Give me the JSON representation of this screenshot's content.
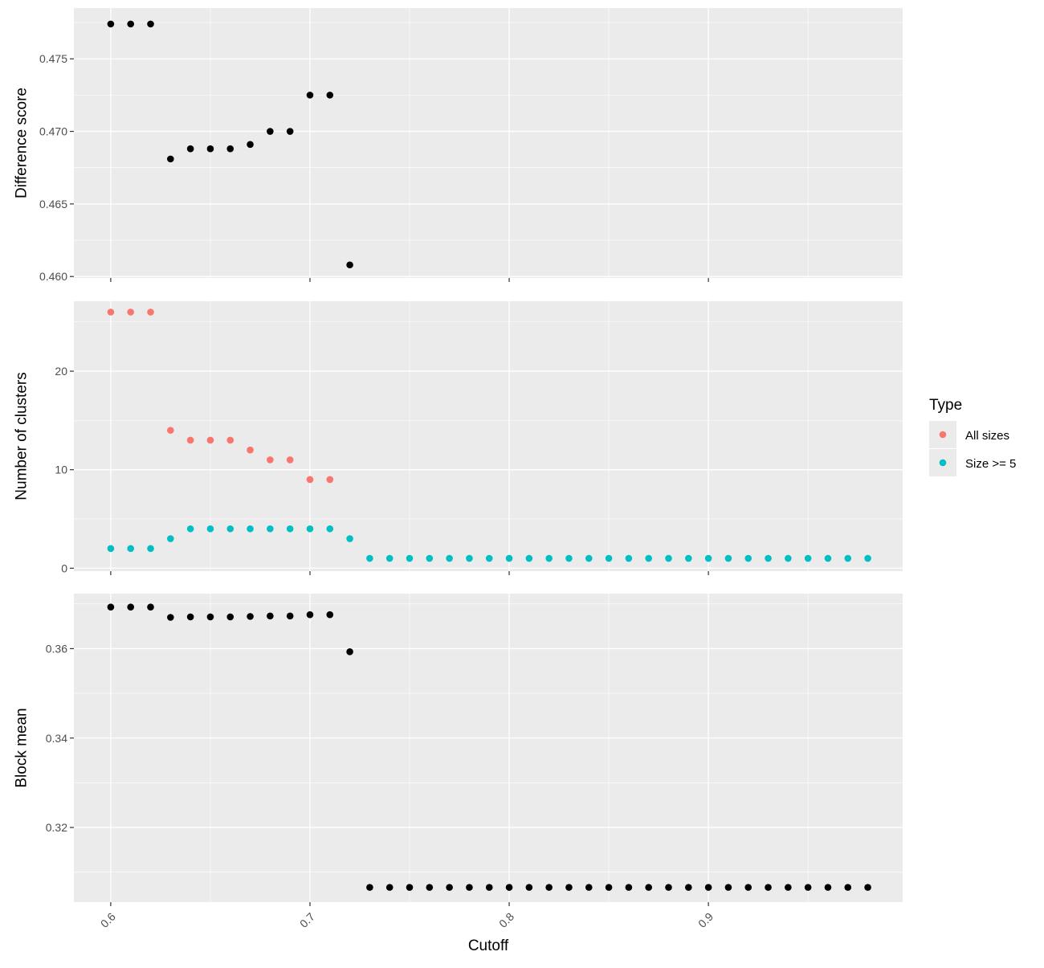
{
  "chart_data": {
    "type": "scatter",
    "x_axis": {
      "label": "Cutoff",
      "range": [
        0.5815,
        0.9975
      ],
      "ticks": [
        0.6,
        0.7,
        0.8,
        0.9
      ],
      "tick_labels": [
        "0.6",
        "0.7",
        "0.8",
        "0.9"
      ]
    },
    "grid": true,
    "legend": {
      "title": "Type",
      "placement": "right",
      "entries": [
        {
          "label": "All sizes",
          "color": "#F8766D"
        },
        {
          "label": "Size >= 5",
          "color": "#00BFC4"
        }
      ]
    },
    "panels": [
      {
        "ylabel": "Difference score",
        "ylim": [
          0.4599,
          0.4785
        ],
        "yticks": [
          0.46,
          0.465,
          0.47,
          0.475
        ],
        "ytick_labels": [
          "0.460",
          "0.465",
          "0.470",
          "0.475"
        ],
        "series": [
          {
            "color": "#000000",
            "points": [
              [
                0.6,
                0.4774
              ],
              [
                0.61,
                0.4774
              ],
              [
                0.62,
                0.4774
              ],
              [
                0.63,
                0.4681
              ],
              [
                0.64,
                0.4688
              ],
              [
                0.65,
                0.4688
              ],
              [
                0.66,
                0.4688
              ],
              [
                0.67,
                0.4691
              ],
              [
                0.68,
                0.47
              ],
              [
                0.69,
                0.47
              ],
              [
                0.7,
                0.4725
              ],
              [
                0.71,
                0.4725
              ],
              [
                0.72,
                0.4608
              ]
            ]
          }
        ]
      },
      {
        "ylabel": "Number of clusters",
        "ylim": [
          -0.3,
          27.1
        ],
        "yticks": [
          0,
          10,
          20
        ],
        "ytick_labels": [
          "0",
          "10",
          "20"
        ],
        "series": [
          {
            "name": "All sizes",
            "color": "#F8766D",
            "points": [
              [
                0.6,
                26
              ],
              [
                0.61,
                26
              ],
              [
                0.62,
                26
              ],
              [
                0.63,
                14
              ],
              [
                0.64,
                13
              ],
              [
                0.65,
                13
              ],
              [
                0.66,
                13
              ],
              [
                0.67,
                12
              ],
              [
                0.68,
                11
              ],
              [
                0.69,
                11
              ],
              [
                0.7,
                9
              ],
              [
                0.71,
                9
              ]
            ]
          },
          {
            "name": "Size >= 5",
            "color": "#00BFC4",
            "points": [
              [
                0.6,
                2
              ],
              [
                0.61,
                2
              ],
              [
                0.62,
                2
              ],
              [
                0.63,
                3
              ],
              [
                0.64,
                4
              ],
              [
                0.65,
                4
              ],
              [
                0.66,
                4
              ],
              [
                0.67,
                4
              ],
              [
                0.68,
                4
              ],
              [
                0.69,
                4
              ],
              [
                0.7,
                4
              ],
              [
                0.71,
                4
              ],
              [
                0.72,
                3
              ],
              [
                0.73,
                1
              ],
              [
                0.74,
                1
              ],
              [
                0.75,
                1
              ],
              [
                0.76,
                1
              ],
              [
                0.77,
                1
              ],
              [
                0.78,
                1
              ],
              [
                0.79,
                1
              ],
              [
                0.8,
                1
              ],
              [
                0.81,
                1
              ],
              [
                0.82,
                1
              ],
              [
                0.83,
                1
              ],
              [
                0.84,
                1
              ],
              [
                0.85,
                1
              ],
              [
                0.86,
                1
              ],
              [
                0.87,
                1
              ],
              [
                0.88,
                1
              ],
              [
                0.89,
                1
              ],
              [
                0.9,
                1
              ],
              [
                0.91,
                1
              ],
              [
                0.92,
                1
              ],
              [
                0.93,
                1
              ],
              [
                0.94,
                1
              ],
              [
                0.95,
                1
              ],
              [
                0.96,
                1
              ],
              [
                0.97,
                1
              ],
              [
                0.98,
                1
              ]
            ]
          }
        ]
      },
      {
        "ylabel": "Block mean",
        "ylim": [
          0.3033,
          0.3723
        ],
        "yticks": [
          0.32,
          0.34,
          0.36
        ],
        "ytick_labels": [
          "0.32",
          "0.34",
          "0.36"
        ],
        "series": [
          {
            "color": "#000000",
            "points": [
              [
                0.6,
                0.3693
              ],
              [
                0.61,
                0.3693
              ],
              [
                0.62,
                0.3693
              ],
              [
                0.63,
                0.367
              ],
              [
                0.64,
                0.3671
              ],
              [
                0.65,
                0.3671
              ],
              [
                0.66,
                0.3671
              ],
              [
                0.67,
                0.3672
              ],
              [
                0.68,
                0.3673
              ],
              [
                0.69,
                0.3673
              ],
              [
                0.7,
                0.3676
              ],
              [
                0.71,
                0.3676
              ],
              [
                0.72,
                0.3593
              ],
              [
                0.73,
                0.3066
              ],
              [
                0.74,
                0.3066
              ],
              [
                0.75,
                0.3066
              ],
              [
                0.76,
                0.3066
              ],
              [
                0.77,
                0.3066
              ],
              [
                0.78,
                0.3066
              ],
              [
                0.79,
                0.3066
              ],
              [
                0.8,
                0.3066
              ],
              [
                0.81,
                0.3066
              ],
              [
                0.82,
                0.3066
              ],
              [
                0.83,
                0.3066
              ],
              [
                0.84,
                0.3066
              ],
              [
                0.85,
                0.3066
              ],
              [
                0.86,
                0.3066
              ],
              [
                0.87,
                0.3066
              ],
              [
                0.88,
                0.3066
              ],
              [
                0.89,
                0.3066
              ],
              [
                0.9,
                0.3066
              ],
              [
                0.91,
                0.3066
              ],
              [
                0.92,
                0.3066
              ],
              [
                0.93,
                0.3066
              ],
              [
                0.94,
                0.3066
              ],
              [
                0.95,
                0.3066
              ],
              [
                0.96,
                0.3066
              ],
              [
                0.97,
                0.3066
              ],
              [
                0.98,
                0.3066
              ]
            ]
          }
        ]
      }
    ]
  }
}
